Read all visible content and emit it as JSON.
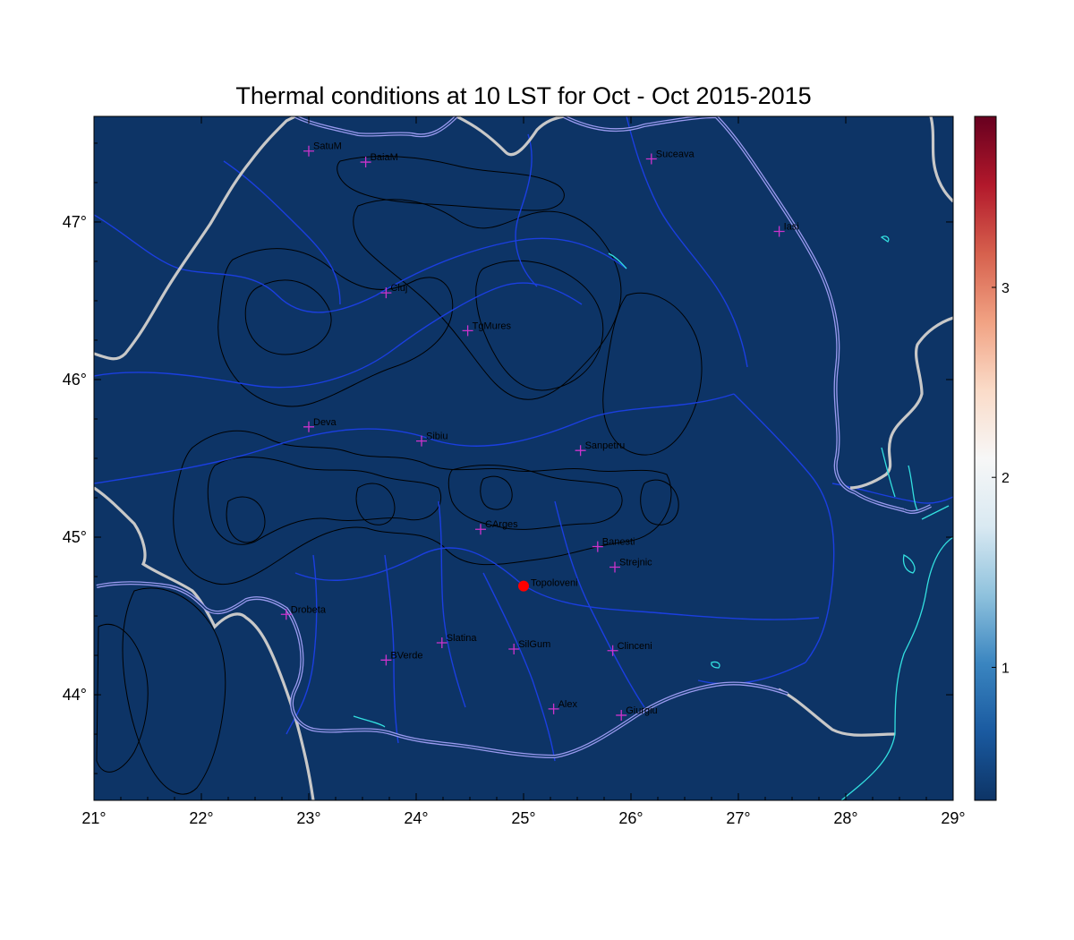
{
  "title": "Thermal conditions at 10 LST for Oct - Oct  2015-2015",
  "map": {
    "lon_range": [
      21,
      29
    ],
    "lat_range": [
      43.33,
      47.67
    ],
    "background_color": "#0d3466",
    "x_ticks": [
      {
        "value": 21,
        "label": "21°"
      },
      {
        "value": 22,
        "label": "22°"
      },
      {
        "value": 23,
        "label": "23°"
      },
      {
        "value": 24,
        "label": "24°"
      },
      {
        "value": 25,
        "label": "25°"
      },
      {
        "value": 26,
        "label": "26°"
      },
      {
        "value": 27,
        "label": "27°"
      },
      {
        "value": 28,
        "label": "28°"
      },
      {
        "value": 29,
        "label": "29°"
      }
    ],
    "y_ticks": [
      {
        "value": 44,
        "label": "44°"
      },
      {
        "value": 45,
        "label": "45°"
      },
      {
        "value": 46,
        "label": "46°"
      },
      {
        "value": 47,
        "label": "47°"
      }
    ],
    "marker_color": "#cc33cc",
    "cities": [
      {
        "name": "SatuM",
        "lon": 23.0,
        "lat": 47.45
      },
      {
        "name": "BaiaM",
        "lon": 23.53,
        "lat": 47.38
      },
      {
        "name": "Suceava",
        "lon": 26.19,
        "lat": 47.4
      },
      {
        "name": "Iasi",
        "lon": 27.38,
        "lat": 46.94
      },
      {
        "name": "Cluj",
        "lon": 23.72,
        "lat": 46.55
      },
      {
        "name": "TgMures",
        "lon": 24.48,
        "lat": 46.31
      },
      {
        "name": "Deva",
        "lon": 23.0,
        "lat": 45.7
      },
      {
        "name": "Sibiu",
        "lon": 24.05,
        "lat": 45.61
      },
      {
        "name": "Sanpetru",
        "lon": 25.53,
        "lat": 45.55
      },
      {
        "name": "CArges",
        "lon": 24.6,
        "lat": 45.05
      },
      {
        "name": "Banesti",
        "lon": 25.69,
        "lat": 44.94
      },
      {
        "name": "Strejnic",
        "lon": 25.85,
        "lat": 44.81
      },
      {
        "name": "Drobeta",
        "lon": 22.79,
        "lat": 44.51
      },
      {
        "name": "Slatina",
        "lon": 24.24,
        "lat": 44.33
      },
      {
        "name": "SilGum",
        "lon": 24.91,
        "lat": 44.29
      },
      {
        "name": "Clinceni",
        "lon": 25.83,
        "lat": 44.28
      },
      {
        "name": "BVerde",
        "lon": 23.72,
        "lat": 44.22
      },
      {
        "name": "Alex",
        "lon": 25.28,
        "lat": 43.91
      },
      {
        "name": "Giurgiu",
        "lon": 25.91,
        "lat": 43.87
      }
    ],
    "highlight": {
      "name": "Topoloveni",
      "lon": 25.0,
      "lat": 44.69,
      "color": "#ff0000"
    }
  },
  "colorbar": {
    "range": [
      0.3,
      3.9
    ],
    "ticks": [
      {
        "value": 1,
        "label": "1"
      },
      {
        "value": 2,
        "label": "2"
      },
      {
        "value": 3,
        "label": "3"
      }
    ],
    "colors": [
      "#0d3466",
      "#1a5aa0",
      "#3a85c0",
      "#8fc2dd",
      "#d9e9f2",
      "#f7f7f7",
      "#fadbc8",
      "#f1a283",
      "#d6604d",
      "#b2182b",
      "#67001f"
    ]
  }
}
